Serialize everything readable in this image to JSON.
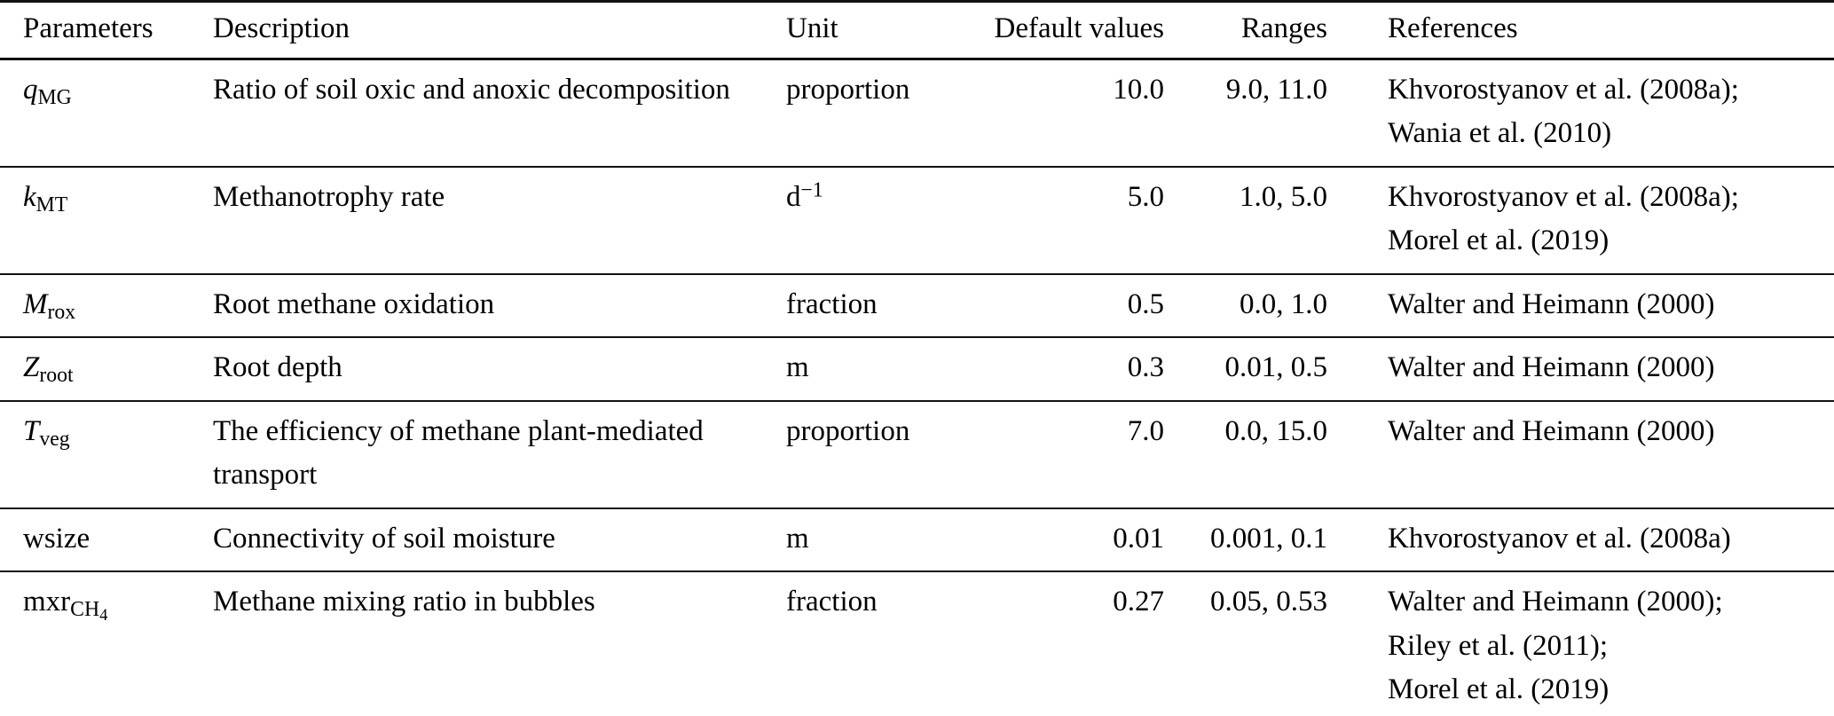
{
  "colors": {
    "background": "#ffffff",
    "text": "#000000",
    "rule": "#111111"
  },
  "table": {
    "header": {
      "parameters": "Parameters",
      "description": "Description",
      "unit": "Unit",
      "default_values": "Default values",
      "ranges": "Ranges",
      "references": "References"
    },
    "rows": [
      {
        "parameter": {
          "base": "q",
          "italic": true,
          "sub": "MG",
          "subsub": ""
        },
        "description": "Ratio of soil oxic and anoxic decomposition",
        "unit": {
          "base": "proportion",
          "sup": ""
        },
        "default_value": "10.0",
        "range": "9.0, 11.0",
        "references": [
          "Khvorostyanov et al. (2008a);",
          "Wania et al. (2010)"
        ]
      },
      {
        "parameter": {
          "base": "k",
          "italic": true,
          "sub": "MT",
          "subsub": ""
        },
        "description": "Methanotrophy rate",
        "unit": {
          "base": "d",
          "sup": "−1"
        },
        "default_value": "5.0",
        "range": "1.0, 5.0",
        "references": [
          "Khvorostyanov et al. (2008a);",
          "Morel et al. (2019)"
        ]
      },
      {
        "parameter": {
          "base": "M",
          "italic": true,
          "sub": "rox",
          "subsub": ""
        },
        "description": "Root methane oxidation",
        "unit": {
          "base": "fraction",
          "sup": ""
        },
        "default_value": "0.5",
        "range": "0.0, 1.0",
        "references": [
          "Walter and Heimann (2000)"
        ]
      },
      {
        "parameter": {
          "base": "Z",
          "italic": true,
          "sub": "root",
          "subsub": ""
        },
        "description": "Root depth",
        "unit": {
          "base": "m",
          "sup": ""
        },
        "default_value": "0.3",
        "range": "0.01, 0.5",
        "references": [
          "Walter and Heimann (2000)"
        ]
      },
      {
        "parameter": {
          "base": "T",
          "italic": true,
          "sub": "veg",
          "subsub": ""
        },
        "description": "The efficiency of methane plant-mediated transport",
        "unit": {
          "base": "proportion",
          "sup": ""
        },
        "default_value": "7.0",
        "range": "0.0, 15.0",
        "references": [
          "Walter and Heimann (2000)"
        ]
      },
      {
        "parameter": {
          "base": "wsize",
          "italic": false,
          "sub": "",
          "subsub": ""
        },
        "description": "Connectivity of soil moisture",
        "unit": {
          "base": "m",
          "sup": ""
        },
        "default_value": "0.01",
        "range": "0.001, 0.1",
        "references": [
          "Khvorostyanov et al. (2008a)"
        ]
      },
      {
        "parameter": {
          "base": "mxr",
          "italic": false,
          "sub": "CH",
          "subsub": "4"
        },
        "description": "Methane mixing ratio in bubbles",
        "unit": {
          "base": "fraction",
          "sup": ""
        },
        "default_value": "0.27",
        "range": "0.05, 0.53",
        "references": [
          "Walter and Heimann (2000);",
          "Riley et al. (2011);",
          "Morel et al. (2019)"
        ]
      }
    ]
  }
}
